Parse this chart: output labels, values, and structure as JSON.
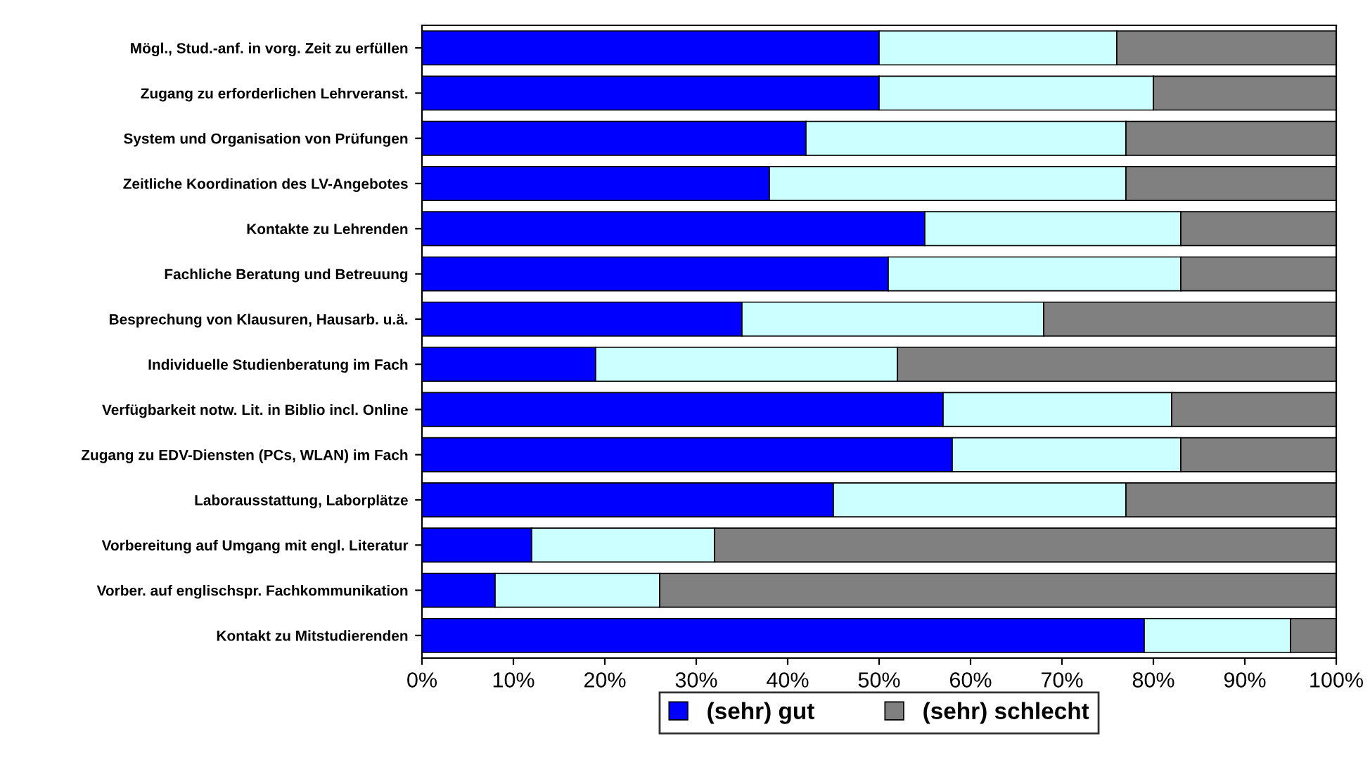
{
  "chart_data": {
    "type": "bar",
    "orientation": "horizontal",
    "stacked": true,
    "categories": [
      "Mögl., Stud.-anf. in vorg. Zeit zu erfüllen",
      "Zugang zu erforderlichen Lehrveranst.",
      "System und Organisation von Prüfungen",
      "Zeitliche Koordination des LV-Angebotes",
      "Kontakte zu Lehrenden",
      "Fachliche Beratung und Betreuung",
      "Besprechung von Klausuren, Hausarb. u.ä.",
      "Individuelle Studienberatung im Fach",
      "Verfügbarkeit notw. Lit. in Biblio incl. Online",
      "Zugang zu EDV-Diensten (PCs, WLAN) im Fach",
      "Laborausstattung, Laborplätze",
      "Vorbereitung auf Umgang mit engl. Literatur",
      "Vorber. auf englischspr. Fachkommunikation",
      "Kontakt zu Mitstudierenden"
    ],
    "series": [
      {
        "name": "(sehr) gut",
        "color": "#0000ff",
        "values": [
          50,
          50,
          42,
          38,
          55,
          51,
          35,
          19,
          57,
          58,
          45,
          12,
          8,
          79
        ]
      },
      {
        "color": "#ccffff",
        "values": [
          26,
          30,
          35,
          39,
          28,
          32,
          33,
          33,
          25,
          25,
          32,
          20,
          18,
          16
        ]
      },
      {
        "name": "(sehr) schlecht",
        "color": "#808080",
        "values": [
          24,
          20,
          23,
          23,
          17,
          17,
          32,
          48,
          18,
          17,
          23,
          68,
          74,
          5
        ]
      }
    ],
    "xlim": [
      0,
      100
    ],
    "xticks": [
      {
        "value": 0,
        "label": "0%"
      },
      {
        "value": 10,
        "label": "10%"
      },
      {
        "value": 20,
        "label": "20%"
      },
      {
        "value": 30,
        "label": "30%"
      },
      {
        "value": 40,
        "label": "40%"
      },
      {
        "value": 50,
        "label": "50%"
      },
      {
        "value": 60,
        "label": "60%"
      },
      {
        "value": 70,
        "label": "70%"
      },
      {
        "value": 80,
        "label": "80%"
      },
      {
        "value": 90,
        "label": "90%"
      },
      {
        "value": 100,
        "label": "100%"
      }
    ],
    "grid": false,
    "legend": "bottom"
  }
}
